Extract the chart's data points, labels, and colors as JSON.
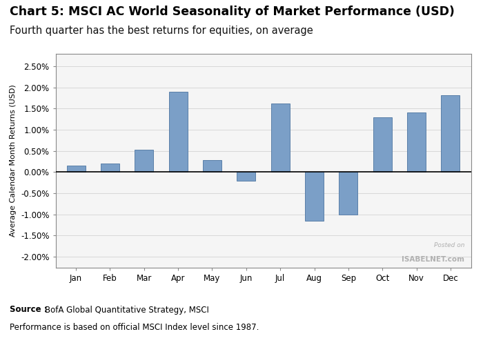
{
  "title": "Chart 5: MSCI AC World Seasonality of Market Performance (USD)",
  "subtitle": "Fourth quarter has the best returns for equities, on average",
  "months": [
    "Jan",
    "Feb",
    "Mar",
    "Apr",
    "May",
    "Jun",
    "Jul",
    "Aug",
    "Sep",
    "Oct",
    "Nov",
    "Dec"
  ],
  "values": [
    0.0015,
    0.002,
    0.0053,
    0.019,
    0.0028,
    -0.002,
    0.0162,
    -0.0115,
    -0.01,
    0.013,
    0.014,
    0.0182
  ],
  "bar_color": "#7b9fc7",
  "bar_edgecolor": "#5a7fa8",
  "ylabel": "Average Calendar Month Returns (USD)",
  "ylim": [
    -0.0225,
    0.028
  ],
  "yticks": [
    -0.02,
    -0.015,
    -0.01,
    -0.005,
    0.0,
    0.005,
    0.01,
    0.015,
    0.02,
    0.025
  ],
  "ytick_labels": [
    "-2.00%",
    "-1.50%",
    "-1.00%",
    "-0.50%",
    "0.00%",
    "0.50%",
    "1.00%",
    "1.50%",
    "2.00%",
    "2.50%"
  ],
  "source_bold": "Source :",
  "source_text": "BofA Global Quantitative Strategy, MSCI",
  "source_line2": "Performance is based on official MSCI Index level since 1987.",
  "watermark_line1": "Posted on",
  "watermark_line2": "ISABELNET.com",
  "background_color": "#ffffff",
  "plot_background": "#f5f5f5",
  "title_fontsize": 12.5,
  "subtitle_fontsize": 10.5,
  "bar_width": 0.55
}
